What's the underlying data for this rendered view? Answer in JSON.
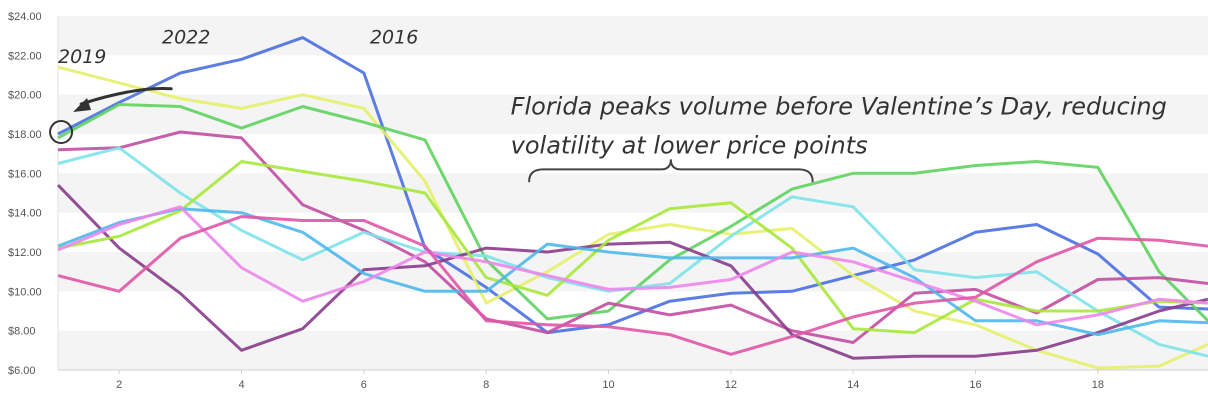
{
  "chart_data": {
    "type": "line",
    "title": "",
    "xlabel": "",
    "ylabel": "",
    "xlim": [
      1,
      19.8
    ],
    "ylim": [
      6,
      24
    ],
    "x_ticks": [
      "2",
      "4",
      "6",
      "8",
      "10",
      "12",
      "14",
      "16",
      "18"
    ],
    "y_ticks": [
      "$6.00",
      "$8.00",
      "$10.00",
      "$12.00",
      "$14.00",
      "$16.00",
      "$18.00",
      "$20.00",
      "$22.00",
      "$24.00"
    ],
    "grid": "alternating horizontal bands",
    "x": [
      1,
      2,
      3,
      4,
      5,
      6,
      7,
      8,
      9,
      10,
      11,
      12,
      13,
      14,
      15,
      16,
      17,
      18,
      19,
      19.8
    ],
    "series": [
      {
        "name": "2016",
        "color": "#4a6fe0",
        "values": [
          18.0,
          19.6,
          21.1,
          21.8,
          22.9,
          21.1,
          12.2,
          10.2,
          7.9,
          8.3,
          9.5,
          9.9,
          10.0,
          10.8,
          11.6,
          13.0,
          13.4,
          11.9,
          9.2,
          9.1
        ]
      },
      {
        "name": "",
        "color": "#e6ef6a",
        "values": [
          21.4,
          20.6,
          19.8,
          19.3,
          20.0,
          19.3,
          15.6,
          9.4,
          11.0,
          12.9,
          13.4,
          12.9,
          13.2,
          10.8,
          9.0,
          8.3,
          7.0,
          6.1,
          6.2,
          7.3
        ]
      },
      {
        "name": "2019",
        "color": "#5fd35f",
        "values": [
          17.8,
          19.5,
          19.4,
          18.3,
          19.4,
          18.6,
          17.7,
          11.6,
          8.6,
          9.0,
          11.6,
          13.3,
          15.2,
          16.0,
          16.0,
          16.4,
          16.6,
          16.3,
          11.0,
          8.5
        ]
      },
      {
        "name": "2022",
        "color": "#c24ea2",
        "values": [
          17.2,
          17.3,
          18.1,
          17.8,
          14.4,
          13.1,
          11.5,
          8.6,
          7.9,
          9.4,
          8.8,
          9.3,
          8.0,
          7.4,
          9.9,
          10.1,
          8.9,
          10.6,
          10.7,
          10.4
        ]
      },
      {
        "name": "",
        "color": "#7ee3ea",
        "values": [
          16.5,
          17.3,
          15.0,
          13.1,
          11.6,
          13.0,
          12.0,
          11.8,
          10.7,
          10.0,
          10.4,
          12.8,
          14.8,
          14.3,
          11.1,
          10.7,
          11.0,
          9.0,
          7.3,
          6.7
        ]
      },
      {
        "name": "",
        "color": "#8a3c8c",
        "values": [
          15.4,
          12.2,
          9.9,
          7.0,
          8.1,
          11.1,
          11.3,
          12.2,
          12.0,
          12.4,
          12.5,
          11.3,
          7.8,
          6.6,
          6.7,
          6.7,
          7.0,
          7.9,
          9.0,
          9.6
        ]
      },
      {
        "name": "",
        "color": "#a7e83c",
        "values": [
          12.2,
          12.8,
          14.1,
          16.6,
          16.1,
          15.6,
          15.0,
          10.7,
          9.8,
          12.6,
          14.2,
          14.5,
          12.2,
          8.1,
          7.9,
          9.6,
          9.0,
          9.0,
          9.5,
          9.4
        ]
      },
      {
        "name": "",
        "color": "#4fb8ea",
        "values": [
          12.3,
          13.5,
          14.2,
          14.0,
          13.0,
          10.9,
          10.0,
          10.0,
          12.4,
          12.0,
          11.7,
          11.7,
          11.7,
          12.2,
          10.7,
          8.5,
          8.5,
          7.8,
          8.5,
          8.4
        ]
      },
      {
        "name": "",
        "color": "#ee85ec",
        "values": [
          12.1,
          13.4,
          14.3,
          11.2,
          9.5,
          10.5,
          12.0,
          11.5,
          10.8,
          10.1,
          10.2,
          10.6,
          12.0,
          11.5,
          10.5,
          9.5,
          8.3,
          8.8,
          9.6,
          9.4
        ]
      },
      {
        "name": "",
        "color": "#e055a6",
        "values": [
          10.8,
          10.0,
          12.7,
          13.8,
          13.6,
          13.6,
          12.3,
          8.5,
          8.3,
          8.2,
          7.8,
          6.8,
          7.7,
          8.7,
          9.4,
          9.7,
          11.5,
          12.7,
          12.6,
          12.3
        ]
      }
    ],
    "annotations": [
      {
        "text": "Florida peaks volume before Valentine’s Day, reducing",
        "x": 8.4,
        "y": 19.0
      },
      {
        "text": "volatility at lower price points",
        "x": 8.4,
        "y": 17.0
      },
      {
        "text": "2016",
        "x": 6.1,
        "y": 22.6
      },
      {
        "text": "2022",
        "x": 2.7,
        "y": 22.6
      },
      {
        "text": "2019",
        "x": 1.0,
        "y": 21.6
      }
    ]
  }
}
